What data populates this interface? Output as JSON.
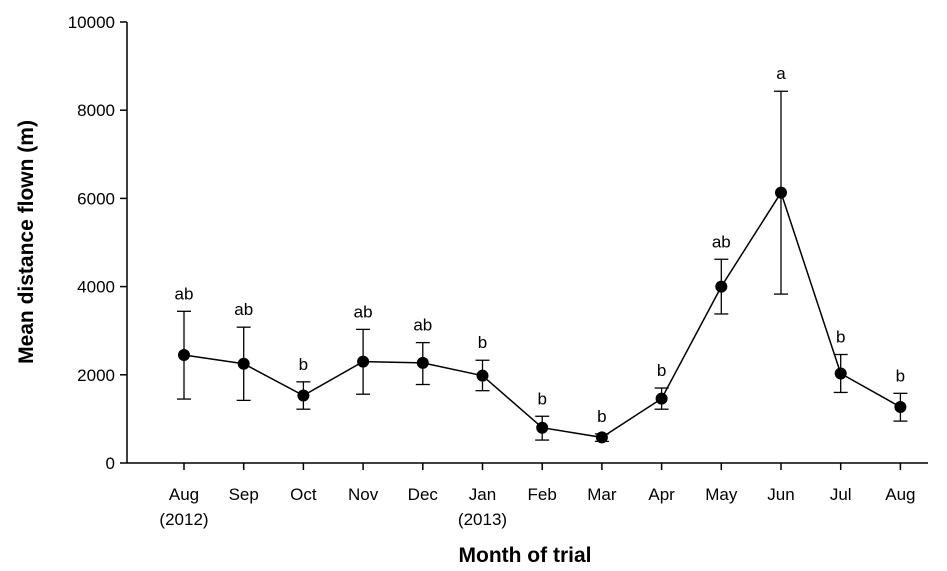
{
  "chart_data": {
    "type": "line",
    "title": "",
    "xlabel": "Month of trial",
    "ylabel": "Mean distance flown (m)",
    "ylim": [
      0,
      10000
    ],
    "yticks": [
      "0",
      "2000",
      "4000",
      "6000",
      "8000",
      "10000"
    ],
    "grid": false,
    "legend": "none",
    "categories": [
      {
        "label": "Aug",
        "sublabel": "(2012)"
      },
      {
        "label": "Sep",
        "sublabel": ""
      },
      {
        "label": "Oct",
        "sublabel": ""
      },
      {
        "label": "Nov",
        "sublabel": ""
      },
      {
        "label": "Dec",
        "sublabel": ""
      },
      {
        "label": "Jan",
        "sublabel": "(2013)"
      },
      {
        "label": "Feb",
        "sublabel": ""
      },
      {
        "label": "Mar",
        "sublabel": ""
      },
      {
        "label": "Apr",
        "sublabel": ""
      },
      {
        "label": "May",
        "sublabel": ""
      },
      {
        "label": "Jun",
        "sublabel": ""
      },
      {
        "label": "Jul",
        "sublabel": ""
      },
      {
        "label": "Aug",
        "sublabel": ""
      }
    ],
    "series": [
      {
        "values": [
          2450,
          2250,
          1530,
          2300,
          2270,
          1980,
          800,
          580,
          1460,
          4000,
          6130,
          2030,
          1270
        ],
        "err_low": [
          1450,
          1420,
          1220,
          1560,
          1780,
          1640,
          520,
          490,
          1220,
          3380,
          3830,
          1600,
          950
        ],
        "err_high": [
          3440,
          3080,
          1840,
          3030,
          2730,
          2330,
          1060,
          660,
          1700,
          4620,
          8430,
          2460,
          1580
        ],
        "significance": [
          "ab",
          "ab",
          "b",
          "ab",
          "ab",
          "b",
          "b",
          "b",
          "b",
          "ab",
          "a",
          "b",
          "b"
        ]
      }
    ],
    "colors": {
      "line": "#000000",
      "marker": "#000000",
      "axis": "#000000"
    }
  }
}
